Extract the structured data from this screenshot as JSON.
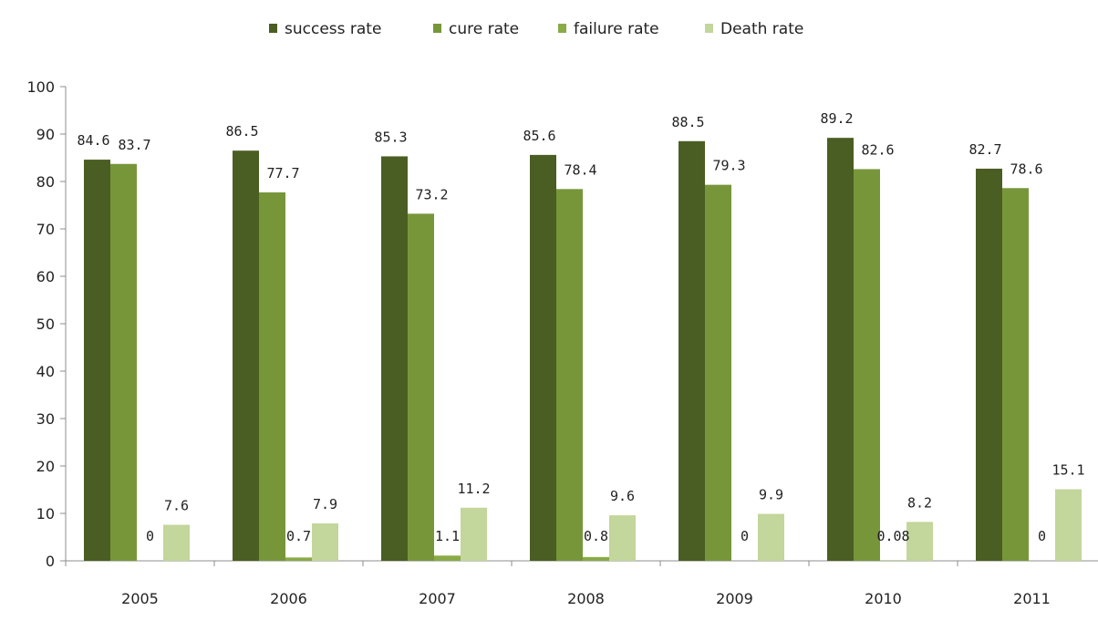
{
  "chart_data": {
    "type": "bar",
    "categories": [
      "2005",
      "2006",
      "2007",
      "2008",
      "2009",
      "2010",
      "2011"
    ],
    "series": [
      {
        "name": "success rate",
        "color": "#4a5e23",
        "values": [
          84.6,
          86.5,
          85.3,
          85.6,
          88.5,
          89.2,
          82.7
        ],
        "labels": [
          "84.6",
          "86.5",
          "85.3",
          "85.6",
          "88.5",
          "89.2",
          "82.7"
        ]
      },
      {
        "name": "cure rate",
        "color": "#77963a",
        "values": [
          83.7,
          77.7,
          73.2,
          78.4,
          79.3,
          82.6,
          78.6
        ],
        "labels": [
          "83.7",
          "77.7",
          "73.2",
          "78.4",
          "79.3",
          "82.6",
          "78.6"
        ]
      },
      {
        "name": "failure rate",
        "color": "#8aab45",
        "values": [
          0,
          0.7,
          1.1,
          0.8,
          0,
          0.08,
          0
        ],
        "labels": [
          "0",
          "0.7",
          "1.1",
          "0.8",
          "0",
          "0.08",
          "0"
        ]
      },
      {
        "name": "Death rate",
        "color": "#c3d69b",
        "values": [
          7.6,
          7.9,
          11.2,
          9.6,
          9.9,
          8.2,
          15.1
        ],
        "labels": [
          "7.6",
          "7.9",
          "11.2",
          "9.6",
          "9.9",
          "8.2",
          "15.1"
        ]
      }
    ],
    "yticks": [
      "0",
      "10",
      "20",
      "30",
      "40",
      "50",
      "60",
      "70",
      "80",
      "90",
      "100"
    ],
    "ylim": [
      0,
      100
    ],
    "grid": false,
    "legend_position": "top-center",
    "title": "",
    "xlabel": "",
    "ylabel": ""
  }
}
